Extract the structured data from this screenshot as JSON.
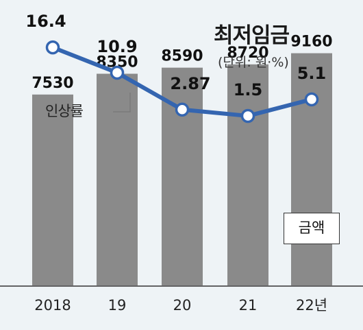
{
  "title": "최저임금",
  "unit": "(단위:  원·%)",
  "chart_data": {
    "type": "bar+line",
    "categories": [
      "2018",
      "19",
      "20",
      "21",
      "22년"
    ],
    "bar_series": {
      "name": "금액",
      "values": [
        7530,
        8350,
        8590,
        8720,
        9160
      ],
      "labels": [
        "7530",
        "8350",
        "8590",
        "8720",
        "9160"
      ],
      "color": "#8a8a8a"
    },
    "line_series": {
      "name": "인상률",
      "values": [
        16.4,
        10.9,
        2.87,
        1.5,
        5.1
      ],
      "labels": [
        "16.4",
        "10.9",
        "2.87",
        "1.5",
        "5.1"
      ],
      "color": "#3465b0"
    },
    "grid": false,
    "legend": "inline labels"
  }
}
